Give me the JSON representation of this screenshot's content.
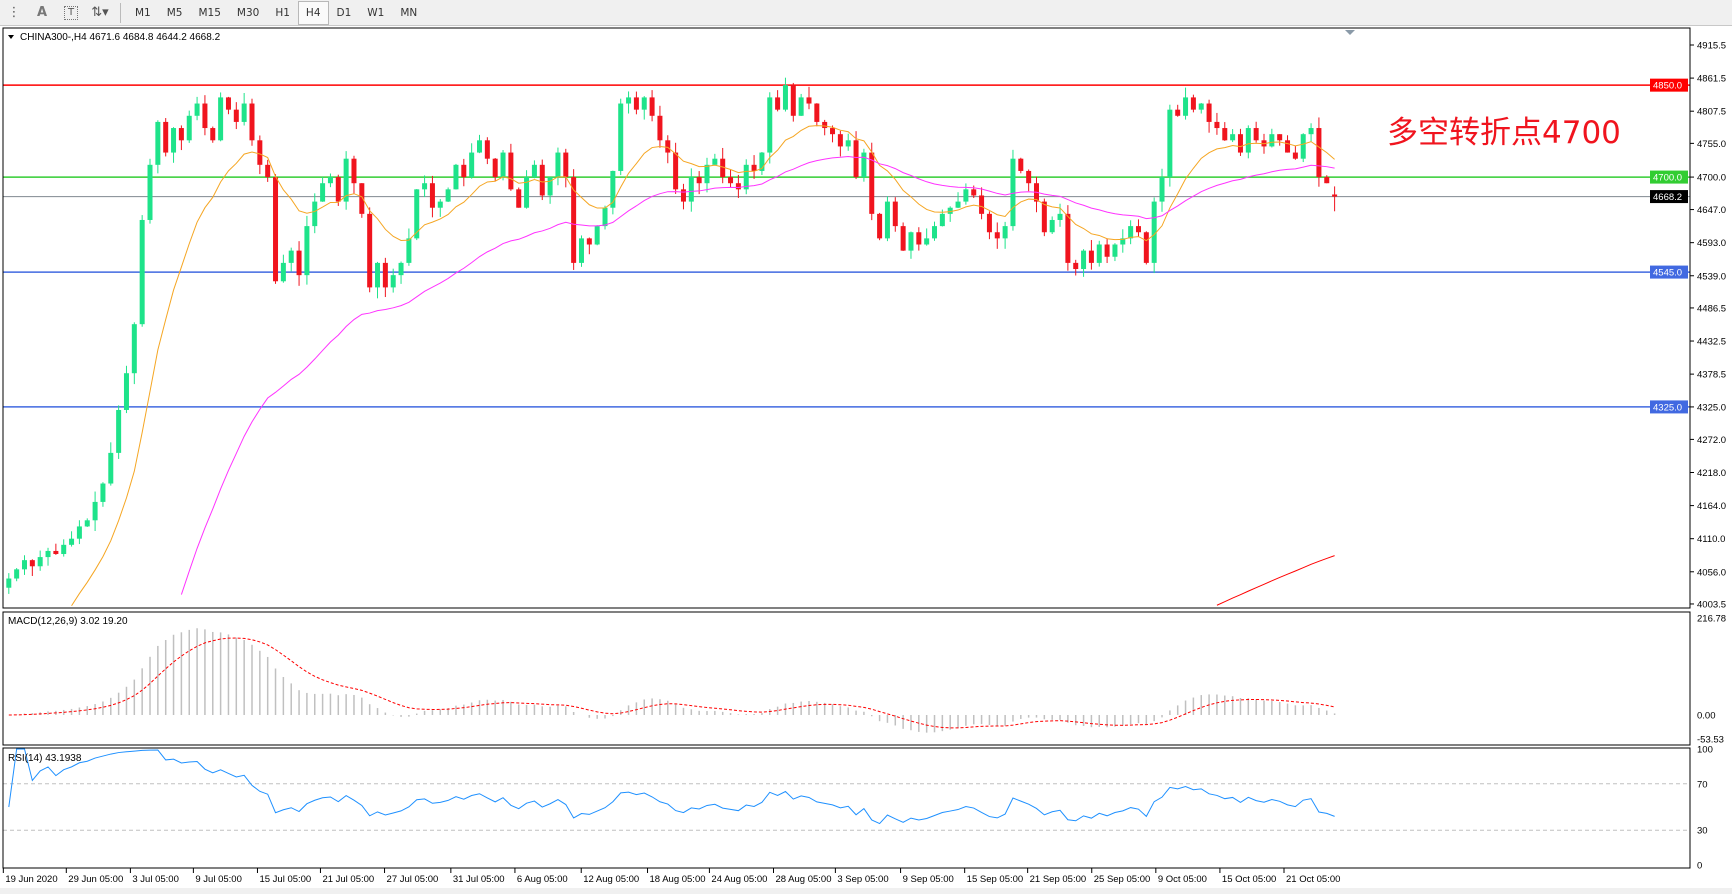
{
  "toolbar": {
    "tools": [
      "hline-grid-icon",
      "text-icon",
      "text-label-icon",
      "arrows-icon"
    ],
    "periods": [
      "M1",
      "M5",
      "M15",
      "M30",
      "H1",
      "H4",
      "D1",
      "W1",
      "MN"
    ],
    "active_period": "H4"
  },
  "main": {
    "symbol_header": "CHINA300-,H4  4671.6 4684.8 4644.2 4668.2",
    "annotation": "多空转折点4700",
    "annotation_color": "#f0141e",
    "price_ticks": [
      "4915.5",
      "4861.5",
      "4807.5",
      "4755.0",
      "4700.0",
      "4647.0",
      "4593.0",
      "4539.0",
      "4486.5",
      "4432.5",
      "4378.5",
      "4325.0",
      "4272.0",
      "4218.0",
      "4164.0",
      "4110.0",
      "4056.0",
      "4003.5"
    ],
    "levels": [
      {
        "price": 4850.0,
        "label": "4850.0",
        "color": "#ff0000"
      },
      {
        "price": 4700.0,
        "label": "4700.0",
        "color": "#32cd32"
      },
      {
        "price": 4668.2,
        "label": "4668.2",
        "color": "#808890"
      },
      {
        "price": 4545.0,
        "label": "4545.0",
        "color": "#4169e1"
      },
      {
        "price": 4325.0,
        "label": "4325.0",
        "color": "#4169e1"
      }
    ],
    "bull_color": "#1ee38a",
    "bear_color": "#f0141e"
  },
  "chart_data": {
    "type": "candlestick",
    "symbol": "CHINA300-",
    "timeframe": "H4",
    "last_ohlc": {
      "open": 4671.6,
      "high": 4684.8,
      "low": 4644.2,
      "close": 4668.2
    },
    "ylim": [
      4003.5,
      4915.5
    ],
    "closes": [
      4045,
      4060,
      4075,
      4065,
      4080,
      4090,
      4085,
      4100,
      4110,
      4130,
      4140,
      4170,
      4200,
      4250,
      4320,
      4380,
      4460,
      4630,
      4720,
      4790,
      4740,
      4780,
      4760,
      4800,
      4820,
      4780,
      4760,
      4830,
      4810,
      4790,
      4820,
      4760,
      4720,
      4700,
      4530,
      4560,
      4580,
      4540,
      4620,
      4660,
      4690,
      4700,
      4660,
      4730,
      4690,
      4640,
      4520,
      4560,
      4520,
      4540,
      4560,
      4600,
      4680,
      4690,
      4650,
      4660,
      4680,
      4720,
      4700,
      4740,
      4760,
      4730,
      4700,
      4740,
      4680,
      4650,
      4700,
      4720,
      4670,
      4700,
      4740,
      4700,
      4560,
      4600,
      4590,
      4620,
      4650,
      4710,
      4820,
      4830,
      4810,
      4830,
      4800,
      4760,
      4740,
      4680,
      4660,
      4700,
      4690,
      4720,
      4730,
      4700,
      4690,
      4680,
      4720,
      4710,
      4740,
      4830,
      4810,
      4850,
      4800,
      4830,
      4820,
      4790,
      4780,
      4770,
      4750,
      4760,
      4700,
      4740,
      4640,
      4600,
      4660,
      4620,
      4580,
      4610,
      4590,
      4600,
      4620,
      4640,
      4650,
      4660,
      4680,
      4670,
      4640,
      4610,
      4600,
      4620,
      4730,
      4710,
      4690,
      4660,
      4610,
      4630,
      4640,
      4560,
      4550,
      4580,
      4560,
      4590,
      4570,
      4590,
      4600,
      4620,
      4610,
      4560,
      4660,
      4700,
      4810,
      4800,
      4830,
      4810,
      4820,
      4790,
      4780,
      4760,
      4770,
      4740,
      4780,
      4760,
      4750,
      4770,
      4760,
      4740,
      4730,
      4770,
      4780,
      4700,
      4690,
      4668.2
    ],
    "moving_average_colors": [
      "#f5a623",
      "#ff33ff",
      "#ff0000"
    ],
    "time_labels": [
      "19 Jun 2020",
      "29 Jun 05:00",
      "3 Jul 05:00",
      "9 Jul 05:00",
      "15 Jul 05:00",
      "21 Jul 05:00",
      "27 Jul 05:00",
      "31 Jul 05:00",
      "6 Aug 05:00",
      "12 Aug 05:00",
      "18 Aug 05:00",
      "24 Aug 05:00",
      "28 Aug 05:00",
      "3 Sep 05:00",
      "9 Sep 05:00",
      "15 Sep 05:00",
      "21 Sep 05:00",
      "25 Sep 05:00",
      "9 Oct 05:00",
      "15 Oct 05:00",
      "21 Oct 05:00"
    ]
  },
  "macd": {
    "label": "MACD(12,26,9) 3.02 19.20",
    "ticks": [
      "216.78",
      "0.00",
      "-53.53"
    ],
    "range": [
      -53.53,
      216.78
    ],
    "histogram_color": "#c0c0c0",
    "signal_color": "#ff0000"
  },
  "rsi": {
    "label": "RSI(14) 43.1938",
    "ticks": [
      "100",
      "70",
      "30",
      "0"
    ],
    "levels": [
      70,
      30
    ],
    "line_color": "#1e90ff"
  }
}
